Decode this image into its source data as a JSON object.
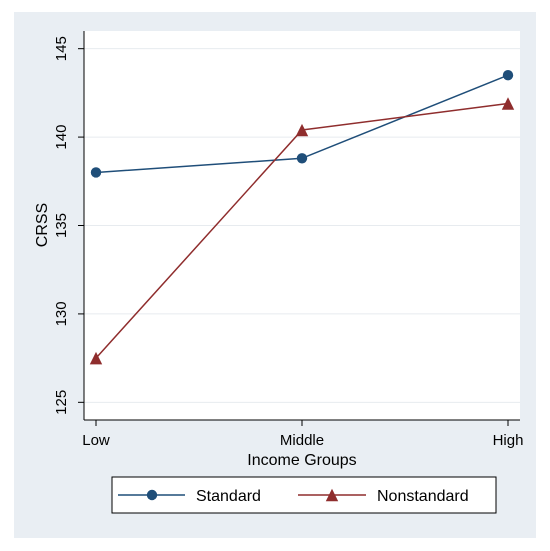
{
  "chart_data": {
    "type": "line",
    "title": "",
    "xlabel": "Income Groups",
    "ylabel": "CRSS",
    "categories": [
      "Low",
      "Middle",
      "High"
    ],
    "ylim": [
      124,
      146
    ],
    "yticks": [
      125,
      130,
      135,
      140,
      145
    ],
    "grid": true,
    "legend_position": "bottom",
    "series": [
      {
        "name": "Standard",
        "values": [
          138.0,
          138.8,
          143.5
        ],
        "color": "#1f4e79",
        "marker": "circle"
      },
      {
        "name": "Nonstandard",
        "values": [
          127.5,
          140.4,
          141.9
        ],
        "color": "#8f2d2d",
        "marker": "triangle"
      }
    ],
    "colors": {
      "outer_background": "#e9eef3",
      "plot_background": "#ffffff",
      "grid": "#e7ebef",
      "axis": "#000000"
    }
  }
}
